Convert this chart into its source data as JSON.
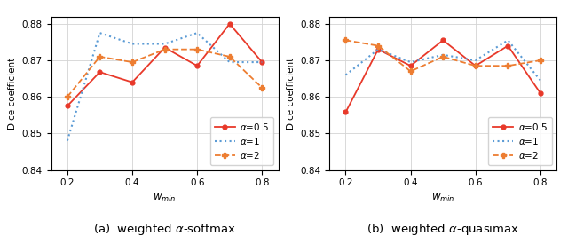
{
  "x": [
    0.2,
    0.3,
    0.4,
    0.5,
    0.6,
    0.7,
    0.8
  ],
  "softmax": {
    "alpha05": [
      0.8575,
      0.8668,
      0.864,
      0.8735,
      0.8685,
      0.88,
      0.8695
    ],
    "alpha1": [
      0.848,
      0.8775,
      0.8745,
      0.8745,
      0.8775,
      0.8695,
      0.8695
    ],
    "alpha2": [
      0.86,
      0.871,
      0.8695,
      0.873,
      0.873,
      0.871,
      0.8625
    ]
  },
  "quasimax": {
    "alpha05": [
      0.8558,
      0.873,
      0.8685,
      0.8755,
      0.8685,
      0.874,
      0.861
    ],
    "alpha1": [
      0.866,
      0.873,
      0.8695,
      0.8715,
      0.87,
      0.8755,
      0.8645
    ],
    "alpha2": [
      0.8755,
      0.874,
      0.867,
      0.871,
      0.8685,
      0.8685,
      0.87
    ]
  },
  "ylim": [
    0.84,
    0.882
  ],
  "yticks": [
    0.84,
    0.85,
    0.86,
    0.87,
    0.88
  ],
  "xticks": [
    0.2,
    0.4,
    0.6,
    0.8
  ],
  "xlabel": "$w_{min}$",
  "ylabel": "Dice coefficient",
  "color_red": "#e8392a",
  "color_blue": "#5b9bd5",
  "color_orange": "#ed7d31",
  "label_a": "(a)  weighted $\\alpha$-softmax",
  "label_b": "(b)  weighted $\\alpha$-quasimax",
  "legend_alpha05": "$\\alpha$=0.5",
  "legend_alpha1": "$\\alpha$=1",
  "legend_alpha2": "$\\alpha$=2"
}
